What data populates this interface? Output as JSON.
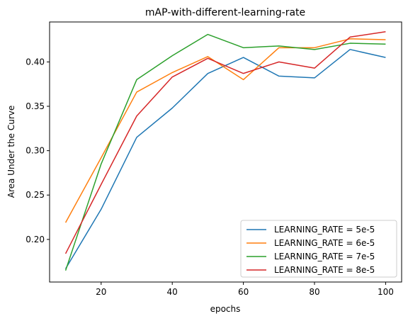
{
  "chart_data": {
    "type": "line",
    "title": "mAP-with-different-learning-rate",
    "xlabel": "epochs",
    "ylabel": "Area Under the Curve",
    "xlim": [
      5.5,
      104.5
    ],
    "ylim": [
      0.152,
      0.445
    ],
    "xticks": [
      20,
      40,
      60,
      80,
      100
    ],
    "yticks": [
      0.2,
      0.25,
      0.3,
      0.35,
      0.4
    ],
    "ytick_labels": [
      "0.20",
      "0.25",
      "0.30",
      "0.35",
      "0.40"
    ],
    "x": [
      10,
      20,
      30,
      40,
      50,
      60,
      70,
      80,
      90,
      100
    ],
    "grid": false,
    "legend_position": "lower-right",
    "series": [
      {
        "name": "LEARNING_RATE = 5e-5",
        "color": "#1f77b4",
        "values": [
          0.167,
          0.234,
          0.315,
          0.348,
          0.387,
          0.405,
          0.384,
          0.382,
          0.414,
          0.405
        ]
      },
      {
        "name": "LEARNING_RATE = 6e-5",
        "color": "#ff7f0e",
        "values": [
          0.219,
          0.292,
          0.366,
          0.388,
          0.406,
          0.38,
          0.416,
          0.416,
          0.426,
          0.425
        ]
      },
      {
        "name": "LEARNING_RATE = 7e-5",
        "color": "#2ca02c",
        "values": [
          0.165,
          0.285,
          0.38,
          0.407,
          0.431,
          0.416,
          0.418,
          0.414,
          0.421,
          0.42
        ]
      },
      {
        "name": "LEARNING_RATE = 8e-5",
        "color": "#d62728",
        "values": [
          0.184,
          0.262,
          0.339,
          0.383,
          0.404,
          0.387,
          0.4,
          0.393,
          0.428,
          0.434
        ]
      }
    ]
  }
}
